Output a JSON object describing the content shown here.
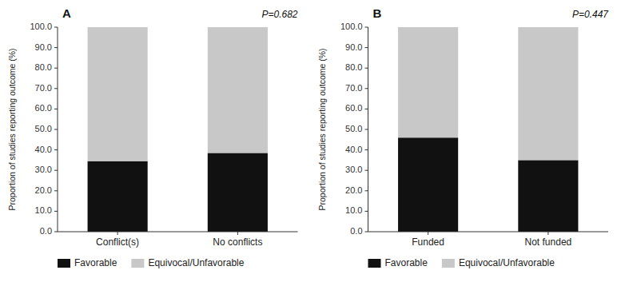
{
  "chart_data": [
    {
      "type": "bar",
      "stacked": true,
      "title": "A",
      "annotation": "P=0.682",
      "ylabel": "Proportion of studies reporting outcome (%)",
      "categories": [
        "Conflict(s)",
        "No conflicts"
      ],
      "series": [
        {
          "name": "Favorable",
          "color": "#111111",
          "values": [
            34.5,
            38.5
          ]
        },
        {
          "name": "Equivocal/Unfavorable",
          "color": "#c8c8c8",
          "values": [
            65.5,
            61.5
          ]
        }
      ],
      "ylim": [
        0,
        100
      ],
      "yticks": [
        {
          "value": 0.0,
          "label": "0.0"
        },
        {
          "value": 10.0,
          "label": "10.0"
        },
        {
          "value": 20.0,
          "label": "20.0"
        },
        {
          "value": 30.0,
          "label": "30.0"
        },
        {
          "value": 40.0,
          "label": "40.0"
        },
        {
          "value": 50.0,
          "label": "50.0"
        },
        {
          "value": 60.0,
          "label": "60.0"
        },
        {
          "value": 70.0,
          "label": "70.0"
        },
        {
          "value": 80.0,
          "label": "80.0"
        },
        {
          "value": 90.0,
          "label": "90.0"
        },
        {
          "value": 100.0,
          "label": "100.0"
        }
      ],
      "grid": false,
      "legend": "bottom"
    },
    {
      "type": "bar",
      "stacked": true,
      "title": "B",
      "annotation": "P=0.447",
      "ylabel": "Proportion of studies reporting outcome (%)",
      "categories": [
        "Funded",
        "Not funded"
      ],
      "series": [
        {
          "name": "Favorable",
          "color": "#111111",
          "values": [
            46.0,
            35.0
          ]
        },
        {
          "name": "Equivocal/Unfavorable",
          "color": "#c8c8c8",
          "values": [
            54.0,
            65.0
          ]
        }
      ],
      "ylim": [
        0,
        100
      ],
      "yticks": [
        {
          "value": 0.0,
          "label": "0.0"
        },
        {
          "value": 10.0,
          "label": "10.0"
        },
        {
          "value": 20.0,
          "label": "20.0"
        },
        {
          "value": 30.0,
          "label": "30.0"
        },
        {
          "value": 40.0,
          "label": "40.0"
        },
        {
          "value": 50.0,
          "label": "50.0"
        },
        {
          "value": 60.0,
          "label": "60.0"
        },
        {
          "value": 70.0,
          "label": "70.0"
        },
        {
          "value": 80.0,
          "label": "80.0"
        },
        {
          "value": 90.0,
          "label": "90.0"
        },
        {
          "value": 100.0,
          "label": "100.0"
        }
      ],
      "grid": false,
      "legend": "bottom"
    }
  ]
}
